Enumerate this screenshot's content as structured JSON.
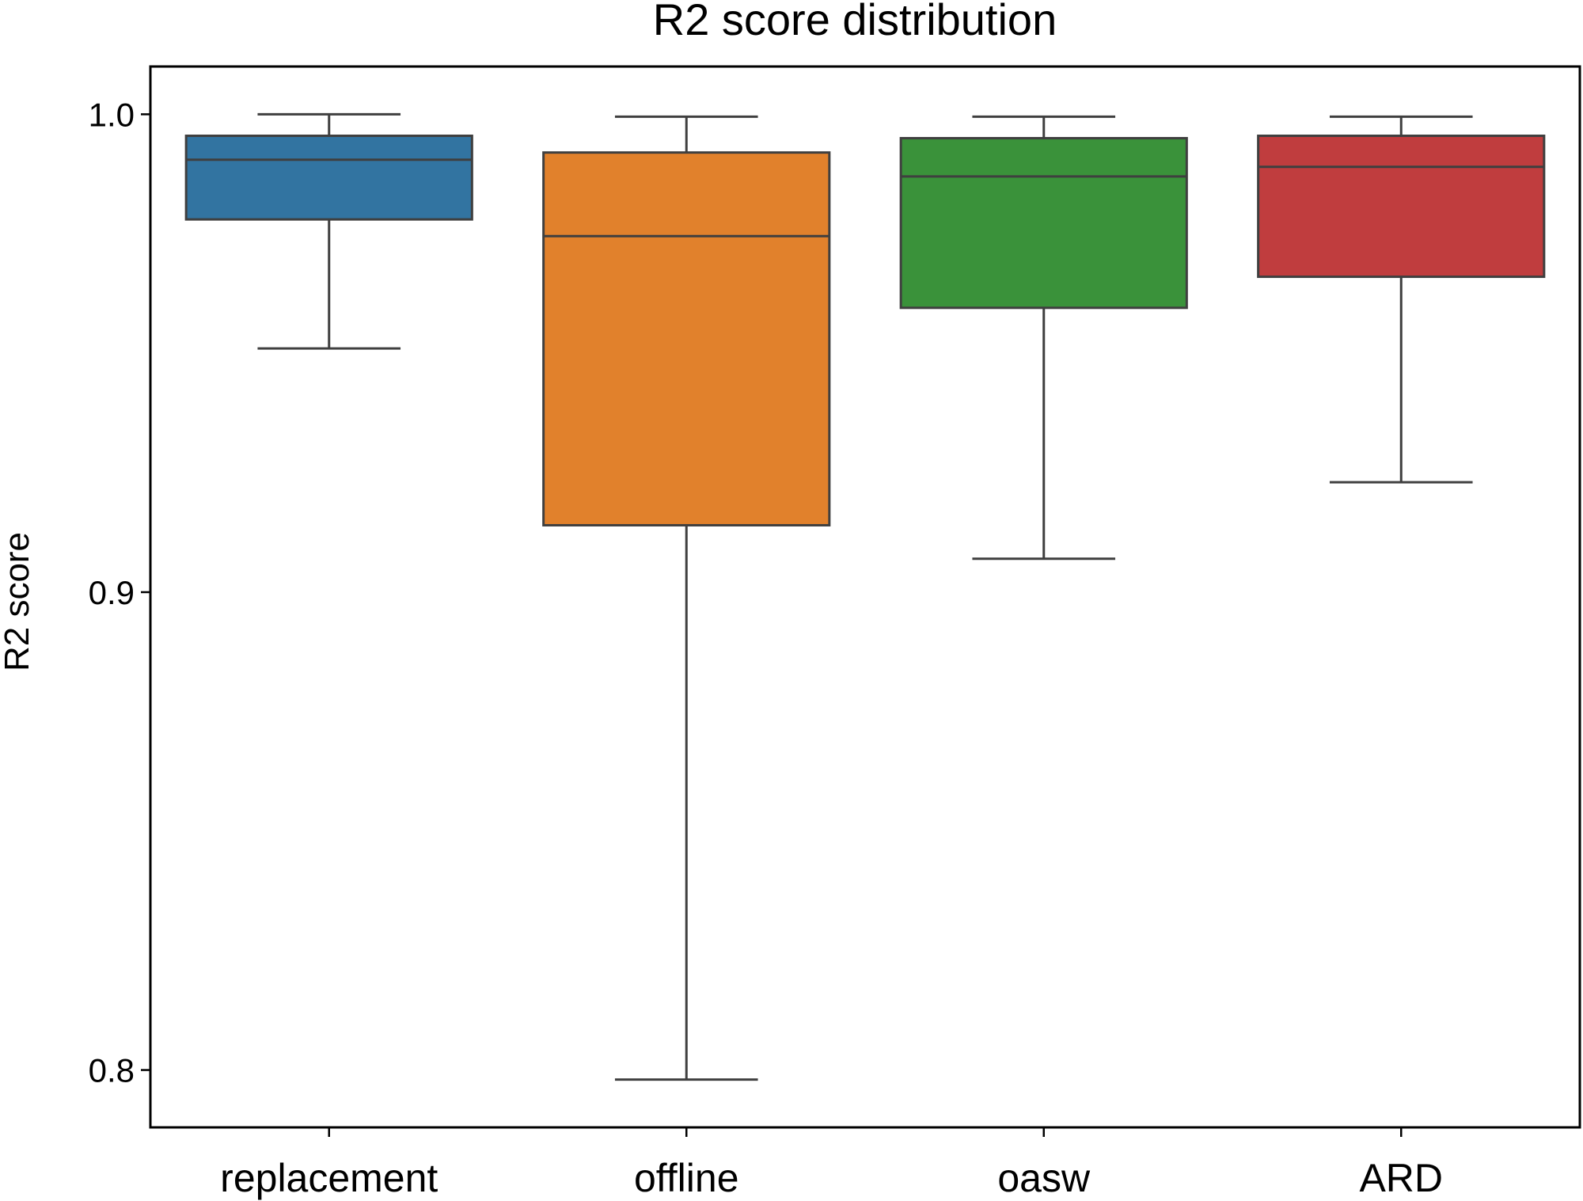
{
  "chart_data": {
    "type": "box",
    "title": "R2 score distribution",
    "xlabel": "",
    "ylabel": "R2 score",
    "ylim": [
      0.788,
      1.01
    ],
    "yticks": [
      0.8,
      0.9,
      1.0
    ],
    "ytick_labels": [
      "0.8",
      "0.9",
      "1.0"
    ],
    "grid": false,
    "legend": null,
    "categories": [
      "replacement",
      "offline",
      "oasw",
      "ARD"
    ],
    "colors": [
      "#3274a1",
      "#e1812c",
      "#3a923a",
      "#c03d3e"
    ],
    "boxes": [
      {
        "whisker_low": 0.951,
        "q1": 0.978,
        "median": 0.9905,
        "q3": 0.9955,
        "whisker_high": 1.0
      },
      {
        "whisker_low": 0.798,
        "q1": 0.914,
        "median": 0.9745,
        "q3": 0.992,
        "whisker_high": 0.9995
      },
      {
        "whisker_low": 0.907,
        "q1": 0.9595,
        "median": 0.987,
        "q3": 0.995,
        "whisker_high": 0.9995
      },
      {
        "whisker_low": 0.923,
        "q1": 0.966,
        "median": 0.989,
        "q3": 0.9955,
        "whisker_high": 0.9995
      }
    ]
  }
}
